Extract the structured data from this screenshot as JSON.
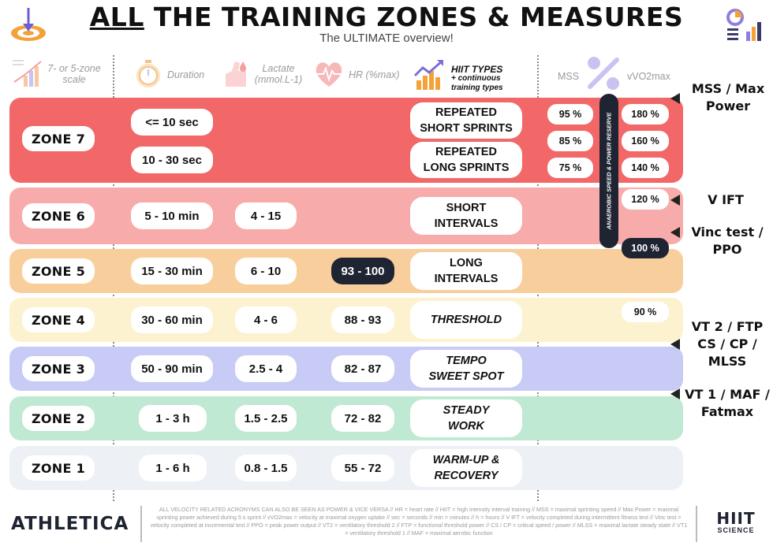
{
  "title": {
    "underlined": "ALL",
    "rest": " THE TRAINING ZONES & MEASURES"
  },
  "subtitle": "The ULTIMATE overview!",
  "headers": {
    "scale": "7- or 5-zone scale",
    "duration": "Duration",
    "lactate": "Lactate (mmol.L-1)",
    "hr": "HR (%max)",
    "hiit_main": "HIIT TYPES",
    "hiit_sub": "+ continuous training types",
    "mss": "MSS",
    "vo2": "vVO2max"
  },
  "zones": [
    {
      "label": "ZONE 7",
      "color": "#f26868",
      "durations": [
        "<= 10 sec",
        "10 - 30 sec"
      ],
      "lactate": "",
      "hr": "",
      "hiit": [
        "REPEATED SHORT SPRINTS",
        "REPEATED LONG SPRINTS"
      ]
    },
    {
      "label": "ZONE 6",
      "color": "#f8abab",
      "duration": "5 - 10 min",
      "lactate": "4 - 15",
      "hr": "",
      "hiit": "SHORT INTERVALS"
    },
    {
      "label": "ZONE 5",
      "color": "#f8cf9c",
      "duration": "15 - 30 min",
      "lactate": "6 - 10",
      "hr": "93 - 100",
      "hiit": "LONG INTERVALS"
    },
    {
      "label": "ZONE 4",
      "color": "#fdf2cf",
      "duration": "30 - 60 min",
      "lactate": "4 - 6",
      "hr": "88 - 93",
      "hiit": "THRESHOLD"
    },
    {
      "label": "ZONE 3",
      "color": "#c7cbf5",
      "duration": "50 - 90 min",
      "lactate": "2.5 - 4",
      "hr": "82 - 87",
      "hiit": "TEMPO SWEET SPOT"
    },
    {
      "label": "ZONE 2",
      "color": "#bfe9d2",
      "duration": "1 - 3 h",
      "lactate": "1.5 - 2.5",
      "hr": "72 - 82",
      "hiit": "STEADY WORK"
    },
    {
      "label": "ZONE 1",
      "color": "#edf1f5",
      "duration": "1 - 6 h",
      "lactate": "0.8 - 1.5",
      "hr": "55 - 72",
      "hiit": "WARM-UP & RECOVERY"
    }
  ],
  "hiit_lines": {
    "z7a": [
      "REPEATED",
      "SHORT SPRINTS"
    ],
    "z7b": [
      "REPEATED",
      "LONG SPRINTS"
    ],
    "z6": [
      "SHORT",
      "INTERVALS"
    ],
    "z5": [
      "LONG",
      "INTERVALS"
    ],
    "z4": [
      "THRESHOLD"
    ],
    "z3": [
      "TEMPO",
      "SWEET SPOT"
    ],
    "z2": [
      "STEADY",
      "WORK"
    ],
    "z1": [
      "WARM-UP &",
      "RECOVERY"
    ]
  },
  "mss_values": [
    "95 %",
    "85 %",
    "75 %"
  ],
  "vo2_values": [
    "180 %",
    "160 %",
    "140 %",
    "120 %",
    "100 %",
    "90 %"
  ],
  "reserve_label": "ANAEROBIC SPEED & POWER RESERVE",
  "right_labels": {
    "mss_power": [
      "MSS / Max",
      "Power"
    ],
    "vift": [
      "V IFT"
    ],
    "vinc": [
      "Vinc test /",
      "PPO"
    ],
    "vt2": [
      "VT 2 / FTP",
      "CS / CP /",
      "MLSS"
    ],
    "vt1": [
      "VT 1 / MAF /",
      "Fatmax"
    ]
  },
  "footer": {
    "brand_left": "ATHLETICA",
    "brand_right_top": "HIIT",
    "brand_right_bottom": "SCIENCE",
    "note": "ALL VELOCITY RELATED ACRONYMS CAN ALSO BE SEEN AS POWER & VICE VERSA // HR = heart rate // HIIT = high intensity interval training // MSS = maximal sprinting speed // Max Power = maximal sprinting power achieved during 5 s sprint // vVO2max = velocity at maximal oxygen uptake // sec = seconds // min = minutes // h = hours // V IFT = velocity completed during intermittent fitness test // Vinc test = velocity completed at incremental test // PPO = peak power output // VT2 = ventilatory threshold 2 // FTP = functional threshold power // CS / CP = critical speed / power // MLSS = maximal lactate steady state // VT1 = ventilatory threshold 1 // MAF = maximal aerobic function"
  },
  "colors": {
    "accent_orange": "#f3a23a",
    "dark_navy": "#1f2433",
    "purple": "#8c7fe0"
  }
}
